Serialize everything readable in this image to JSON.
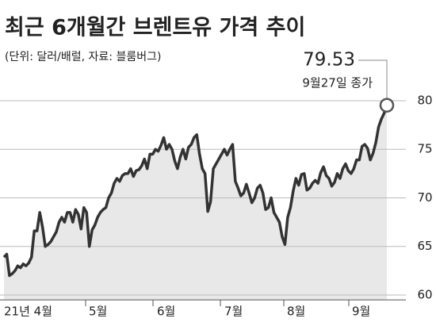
{
  "chart_data": {
    "type": "line",
    "title": "최근 6개월간 브렌트유 가격 추이",
    "subtitle": "(단위: 달러/배럴, 자료: 블룸버그)",
    "annotation": "9월27일 종가",
    "x_labels": [
      "21년 4월",
      "5월",
      "6월",
      "7월",
      "8월",
      "9월"
    ],
    "values": [
      63.9,
      64.2,
      62.0,
      62.2,
      62.5,
      63.0,
      62.8,
      63.2,
      63.0,
      63.3,
      63.9,
      66.6,
      66.6,
      68.5,
      67.0,
      65.0,
      65.2,
      65.5,
      66.0,
      66.5,
      67.5,
      68.0,
      67.5,
      68.5,
      68.5,
      67.5,
      68.8,
      68.3,
      66.8,
      69.0,
      68.5,
      65.0,
      66.7,
      67.2,
      68.0,
      68.5,
      68.8,
      69.0,
      70.0,
      70.5,
      71.5,
      72.0,
      71.7,
      72.3,
      72.5,
      72.5,
      73.0,
      72.2,
      72.8,
      72.9,
      73.3,
      74.0,
      73.0,
      74.5,
      74.5,
      75.0,
      74.8,
      75.4,
      76.2,
      75.0,
      75.5,
      75.0,
      73.8,
      73.0,
      74.2,
      75.0,
      74.0,
      75.2,
      75.5,
      76.2,
      76.5,
      74.5,
      73.0,
      72.5,
      68.6,
      69.6,
      73.0,
      73.5,
      74.0,
      74.5,
      75.0,
      74.4,
      75.0,
      75.5,
      71.7,
      71.0,
      70.2,
      70.5,
      71.4,
      70.5,
      69.5,
      70.0,
      71.0,
      71.3,
      70.5,
      68.8,
      69.0,
      70.0,
      68.5,
      68.0,
      67.5,
      66.0,
      65.2,
      68.0,
      69.0,
      70.7,
      72.0,
      71.3,
      72.4,
      72.5,
      70.8,
      71.0,
      71.5,
      71.8,
      71.5,
      72.6,
      73.2,
      72.3,
      72.0,
      71.2,
      71.6,
      72.5,
      72.0,
      73.0,
      73.5,
      72.8,
      72.5,
      73.0,
      73.9,
      73.9,
      75.3,
      75.5,
      75.1,
      73.9,
      74.6,
      75.7,
      77.3,
      78.1,
      78.7,
      79.53
    ],
    "color": "#333333",
    "fill": "#e8e8e8",
    "ylim": [
      59.5,
      81
    ],
    "yticks": [
      60,
      65,
      70,
      75,
      80
    ],
    "grid": true,
    "y_axis_side": "right"
  }
}
